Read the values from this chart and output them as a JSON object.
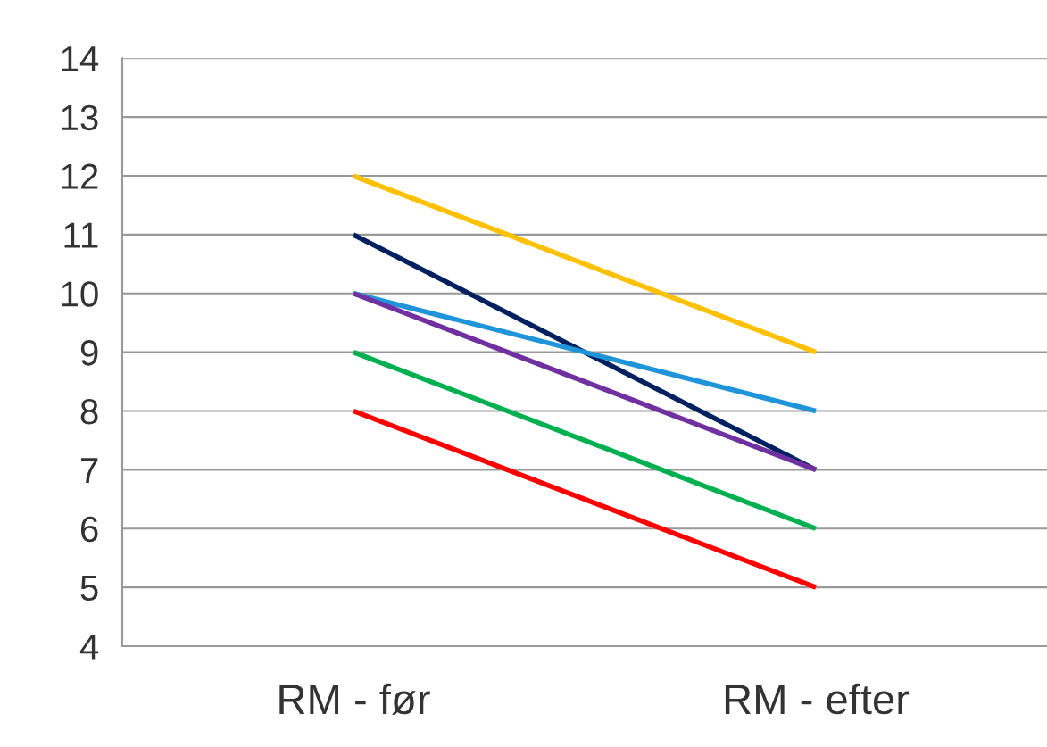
{
  "chart_data": {
    "type": "line",
    "categories": [
      "RM - før",
      "RM - efter"
    ],
    "series": [
      {
        "color": "#ffc000",
        "values": [
          12,
          9
        ]
      },
      {
        "color": "#002060",
        "values": [
          11,
          7
        ]
      },
      {
        "color": "#1f94d8",
        "values": [
          10,
          8
        ]
      },
      {
        "color": "#7030a0",
        "values": [
          10,
          7
        ]
      },
      {
        "color": "#00b050",
        "values": [
          9,
          6
        ]
      },
      {
        "color": "#ff0000",
        "values": [
          8,
          5
        ]
      }
    ],
    "ylim": [
      4,
      14
    ],
    "yticks": [
      4,
      5,
      6,
      7,
      8,
      9,
      10,
      11,
      12,
      13,
      14
    ],
    "grid": "y",
    "marker": "none",
    "line_style": "solid",
    "legend": false
  }
}
